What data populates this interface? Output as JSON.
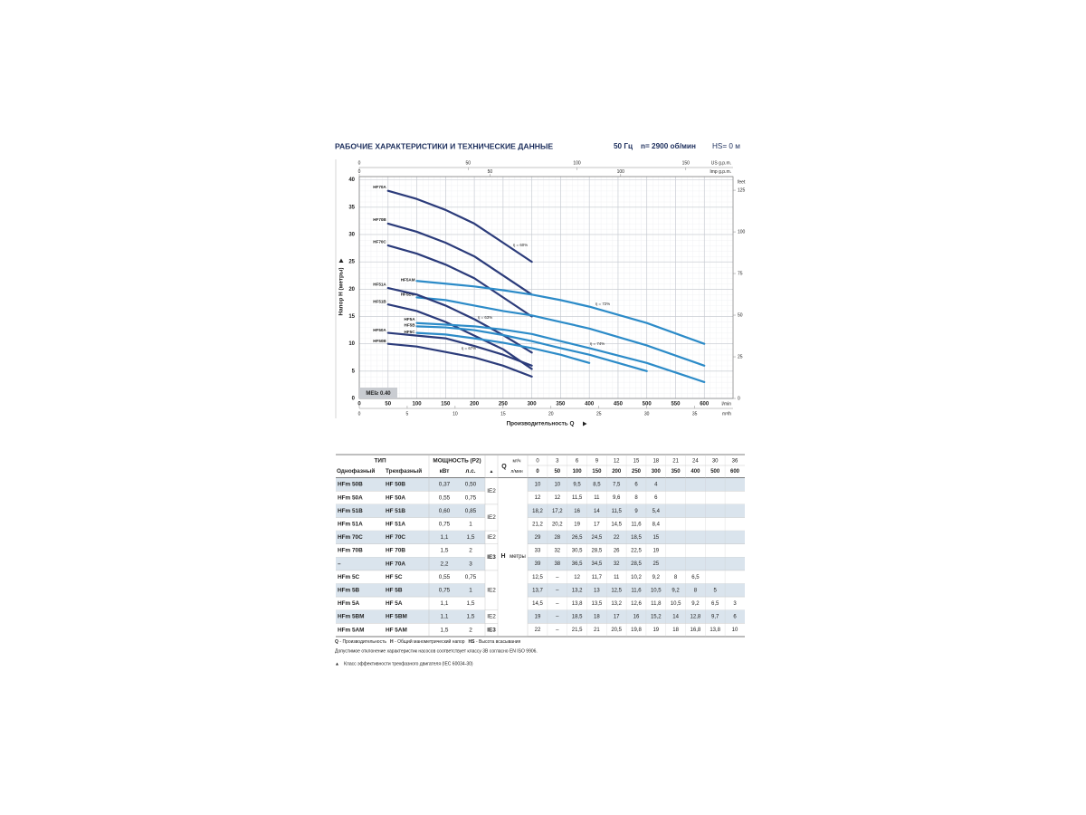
{
  "header": {
    "title": "РАБОЧИЕ ХАРАКТЕРИСТИКИ И ТЕХНИЧЕСКИЕ ДАННЫЕ",
    "frequency": "50 Гц",
    "speed": "n= 2900 об/мин",
    "suction": "HS= 0 м"
  },
  "chart_data": {
    "type": "line",
    "y_label": "Напор H (метры)",
    "x_label": "Производительность Q",
    "x_unit": "l/min",
    "xlim": [
      0,
      650
    ],
    "xticks": [
      0,
      50,
      100,
      150,
      200,
      250,
      300,
      350,
      400,
      450,
      500,
      550,
      600
    ],
    "ylim": [
      0,
      40.6
    ],
    "yticks": [
      0,
      5,
      10,
      15,
      20,
      25,
      30,
      35,
      40
    ],
    "grid": true,
    "x": [
      50,
      100,
      150,
      200,
      250,
      300,
      350,
      400,
      500,
      600
    ],
    "series": [
      {
        "name": "HF70A",
        "color": "#2b3b7a",
        "values": [
          38,
          36.5,
          34.5,
          32,
          28.5,
          25,
          null,
          null,
          null,
          null
        ]
      },
      {
        "name": "HF70B",
        "color": "#2b3b7a",
        "values": [
          32,
          30.5,
          28.5,
          26,
          22.5,
          19,
          null,
          null,
          null,
          null
        ]
      },
      {
        "name": "HF70C",
        "color": "#2b3b7a",
        "values": [
          28,
          26.5,
          24.5,
          22,
          18.5,
          15,
          null,
          null,
          null,
          null
        ]
      },
      {
        "name": "HF5AM",
        "color": "#2c8bc8",
        "values": [
          null,
          21.5,
          21,
          20.5,
          19.8,
          19,
          18,
          16.8,
          13.8,
          10
        ]
      },
      {
        "name": "HF5BM",
        "color": "#2c8bc8",
        "values": [
          null,
          18.5,
          18,
          17,
          16,
          15.2,
          14,
          12.8,
          9.7,
          6
        ]
      },
      {
        "name": "HF51A",
        "color": "#2b3b7a",
        "values": [
          20.2,
          19,
          17,
          14.5,
          11.6,
          8.4,
          null,
          null,
          null,
          null
        ]
      },
      {
        "name": "HF51B",
        "color": "#2b3b7a",
        "values": [
          17.2,
          16,
          14,
          11.5,
          9,
          5.4,
          null,
          null,
          null,
          null
        ]
      },
      {
        "name": "HF5A",
        "color": "#2c8bc8",
        "values": [
          null,
          13.8,
          13.5,
          13.2,
          12.6,
          11.8,
          10.5,
          9.2,
          6.5,
          3
        ]
      },
      {
        "name": "HF5B",
        "color": "#2c8bc8",
        "values": [
          null,
          13.2,
          13,
          12.5,
          11.6,
          10.5,
          9.2,
          8,
          5,
          null
        ]
      },
      {
        "name": "HF5C",
        "color": "#2c8bc8",
        "values": [
          null,
          12,
          11.7,
          11,
          10.2,
          9.2,
          8,
          6.5,
          null,
          null
        ]
      },
      {
        "name": "HF50A",
        "color": "#2b3b7a",
        "values": [
          12,
          11.5,
          11,
          9.6,
          8,
          6,
          null,
          null,
          null,
          null
        ]
      },
      {
        "name": "HF50B",
        "color": "#2b3b7a",
        "values": [
          10,
          9.5,
          8.5,
          7.5,
          6,
          4,
          null,
          null,
          null,
          null
        ]
      }
    ],
    "annotations": [
      "η = 60%",
      "η = 63%",
      "η = 67%",
      "η = 72%",
      "η = 74%"
    ],
    "mei": "MEI≥ 0.40",
    "secondary_axes": {
      "us_gpm": {
        "label": "US g.p.m.",
        "lim": [
          0,
          171.7
        ],
        "ticks": [
          0,
          50,
          100,
          150
        ]
      },
      "imp_gpm": {
        "label": "Imp g.p.m.",
        "lim": [
          0,
          143
        ],
        "ticks": [
          0,
          50,
          100
        ]
      },
      "m3h": {
        "label": "m³/h",
        "lim": [
          0,
          39
        ],
        "ticks": [
          0,
          5,
          10,
          15,
          20,
          25,
          30,
          35
        ]
      },
      "feet": {
        "label": "feet",
        "lim": [
          0,
          133.2
        ],
        "ticks": [
          0,
          25,
          50,
          75,
          100,
          125
        ]
      }
    }
  },
  "table": {
    "header": {
      "type": "ТИП",
      "power": "МОЩНОСТЬ (P2)",
      "q": "Q",
      "q_unit_m3": "м³/ч",
      "q_unit_l": "л/мин",
      "single": "Однофазный",
      "three": "Трехфазный",
      "kw": "кВт",
      "hp": "л.с.",
      "ie_mark": "▲",
      "h": "H",
      "h_unit": "метры"
    },
    "q_m3h": [
      0,
      3,
      6,
      9,
      12,
      15,
      18,
      21,
      24,
      30,
      36
    ],
    "q_lmin": [
      0,
      50,
      100,
      150,
      200,
      250,
      300,
      350,
      400,
      500,
      600
    ],
    "ie": [
      "IE2",
      null,
      "IE2",
      null,
      "IE2",
      "IE3",
      null,
      "IE2",
      null,
      null,
      "IE2",
      "IE3"
    ],
    "rows": [
      {
        "single": "HFm 50B",
        "three": "HF 50B",
        "kw": "0,37",
        "hp": "0,50",
        "h": [
          "10",
          "10",
          "9,5",
          "8,5",
          "7,5",
          "6",
          "4"
        ]
      },
      {
        "single": "HFm 50A",
        "three": "HF 50A",
        "kw": "0,55",
        "hp": "0,75",
        "h": [
          "12",
          "12",
          "11,5",
          "11",
          "9,6",
          "8",
          "6"
        ]
      },
      {
        "single": "HFm 51B",
        "three": "HF 51B",
        "kw": "0,60",
        "hp": "0,85",
        "h": [
          "18,2",
          "17,2",
          "16",
          "14",
          "11,5",
          "9",
          "5,4"
        ]
      },
      {
        "single": "HFm 51A",
        "three": "HF 51A",
        "kw": "0,75",
        "hp": "1",
        "h": [
          "21,2",
          "20,2",
          "19",
          "17",
          "14,5",
          "11,6",
          "8,4"
        ]
      },
      {
        "single": "HFm 70C",
        "three": "HF 70C",
        "kw": "1,1",
        "hp": "1,5",
        "h": [
          "29",
          "28",
          "26,5",
          "24,5",
          "22",
          "18,5",
          "15"
        ]
      },
      {
        "single": "HFm 70B",
        "three": "HF 70B",
        "kw": "1,5",
        "hp": "2",
        "h": [
          "33",
          "32",
          "30,5",
          "28,5",
          "26",
          "22,5",
          "19"
        ]
      },
      {
        "single": "–",
        "three": "HF 70A",
        "kw": "2,2",
        "hp": "3",
        "h": [
          "39",
          "38",
          "36,5",
          "34,5",
          "32",
          "28,5",
          "25"
        ]
      },
      {
        "single": "HFm 5C",
        "three": "HF 5C",
        "kw": "0,55",
        "hp": "0,75",
        "h": [
          "12,5",
          "–",
          "12",
          "11,7",
          "11",
          "10,2",
          "9,2",
          "8",
          "6,5"
        ]
      },
      {
        "single": "HFm 5B",
        "three": "HF 5B",
        "kw": "0,75",
        "hp": "1",
        "h": [
          "13,7",
          "–",
          "13,2",
          "13",
          "12,5",
          "11,6",
          "10,5",
          "9,2",
          "8",
          "5"
        ]
      },
      {
        "single": "HFm 5A",
        "three": "HF 5A",
        "kw": "1,1",
        "hp": "1,5",
        "h": [
          "14,5",
          "–",
          "13,8",
          "13,5",
          "13,2",
          "12,6",
          "11,8",
          "10,5",
          "9,2",
          "6,5",
          "3"
        ]
      },
      {
        "single": "HFm 5BM",
        "three": "HF 5BM",
        "kw": "1,1",
        "hp": "1,5",
        "h": [
          "19",
          "–",
          "18,5",
          "18",
          "17",
          "16",
          "15,2",
          "14",
          "12,8",
          "9,7",
          "6"
        ]
      },
      {
        "single": "HFm 5AM",
        "three": "HF 5AM",
        "kw": "1,5",
        "hp": "2",
        "h": [
          "22",
          "–",
          "21,5",
          "21",
          "20,5",
          "19,8",
          "19",
          "18",
          "16,8",
          "13,8",
          "10"
        ]
      }
    ]
  },
  "notes": {
    "legend": [
      {
        "key": "Q",
        "text": "- Производительность"
      },
      {
        "key": "H",
        "text": "- Общий манометрический напор"
      },
      {
        "key": "HS",
        "text": "- Высота всасывания"
      }
    ],
    "tolerance": "Допустимое отклонение характеристик насосов соответствует классу 3B согласно EN ISO 9906.",
    "ie_note": "Класс эффективности трехфазного двигателя (IEC 60034-30)"
  }
}
